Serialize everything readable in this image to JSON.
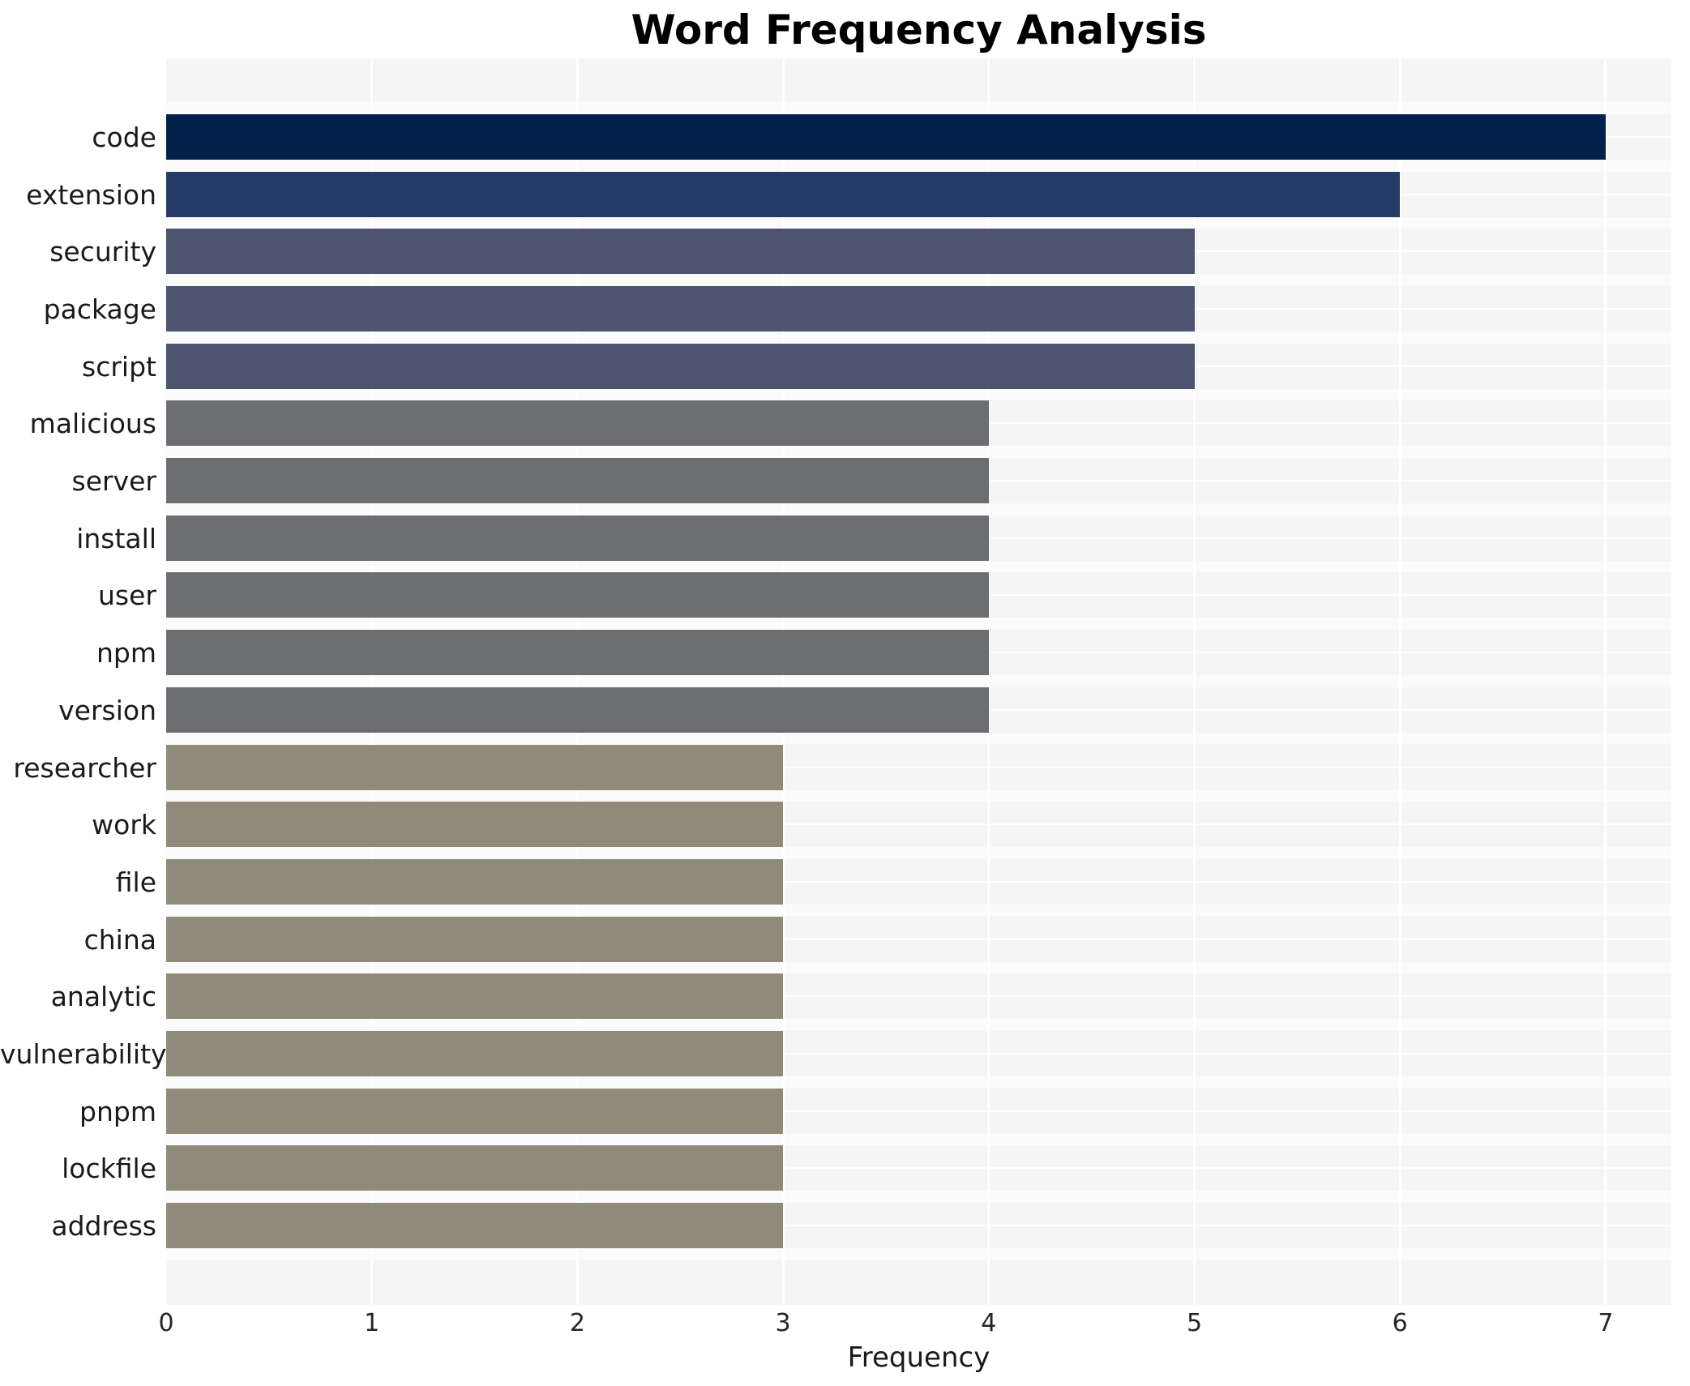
{
  "figure": {
    "title": "Word Frequency Analysis"
  },
  "chart_data": {
    "type": "bar",
    "orientation": "horizontal",
    "title": "Word Frequency Analysis",
    "xlabel": "Frequency",
    "ylabel": "",
    "categories": [
      "code",
      "extension",
      "security",
      "package",
      "script",
      "malicious",
      "server",
      "install",
      "user",
      "npm",
      "version",
      "researcher",
      "work",
      "file",
      "china",
      "analytic",
      "vulnerability",
      "pnpm",
      "lockfile",
      "address"
    ],
    "values": [
      7,
      6,
      5,
      5,
      5,
      4,
      4,
      4,
      4,
      4,
      4,
      3,
      3,
      3,
      3,
      3,
      3,
      3,
      3,
      3
    ],
    "x_ticks": [
      0,
      1,
      2,
      3,
      4,
      5,
      6,
      7
    ],
    "xlim": [
      0,
      7.32
    ],
    "grid": "vertical white gridlines at integer ticks, horizontal white gridlines at bar centers",
    "legend": null,
    "plot_background": "#f5f5f6",
    "colors_by_value": {
      "7": "#02224c",
      "6": "#253b68",
      "5": "#4c5470",
      "4": "#6d6e72",
      "3": "#8f8a79"
    },
    "text_color": "#1a1a1a"
  }
}
